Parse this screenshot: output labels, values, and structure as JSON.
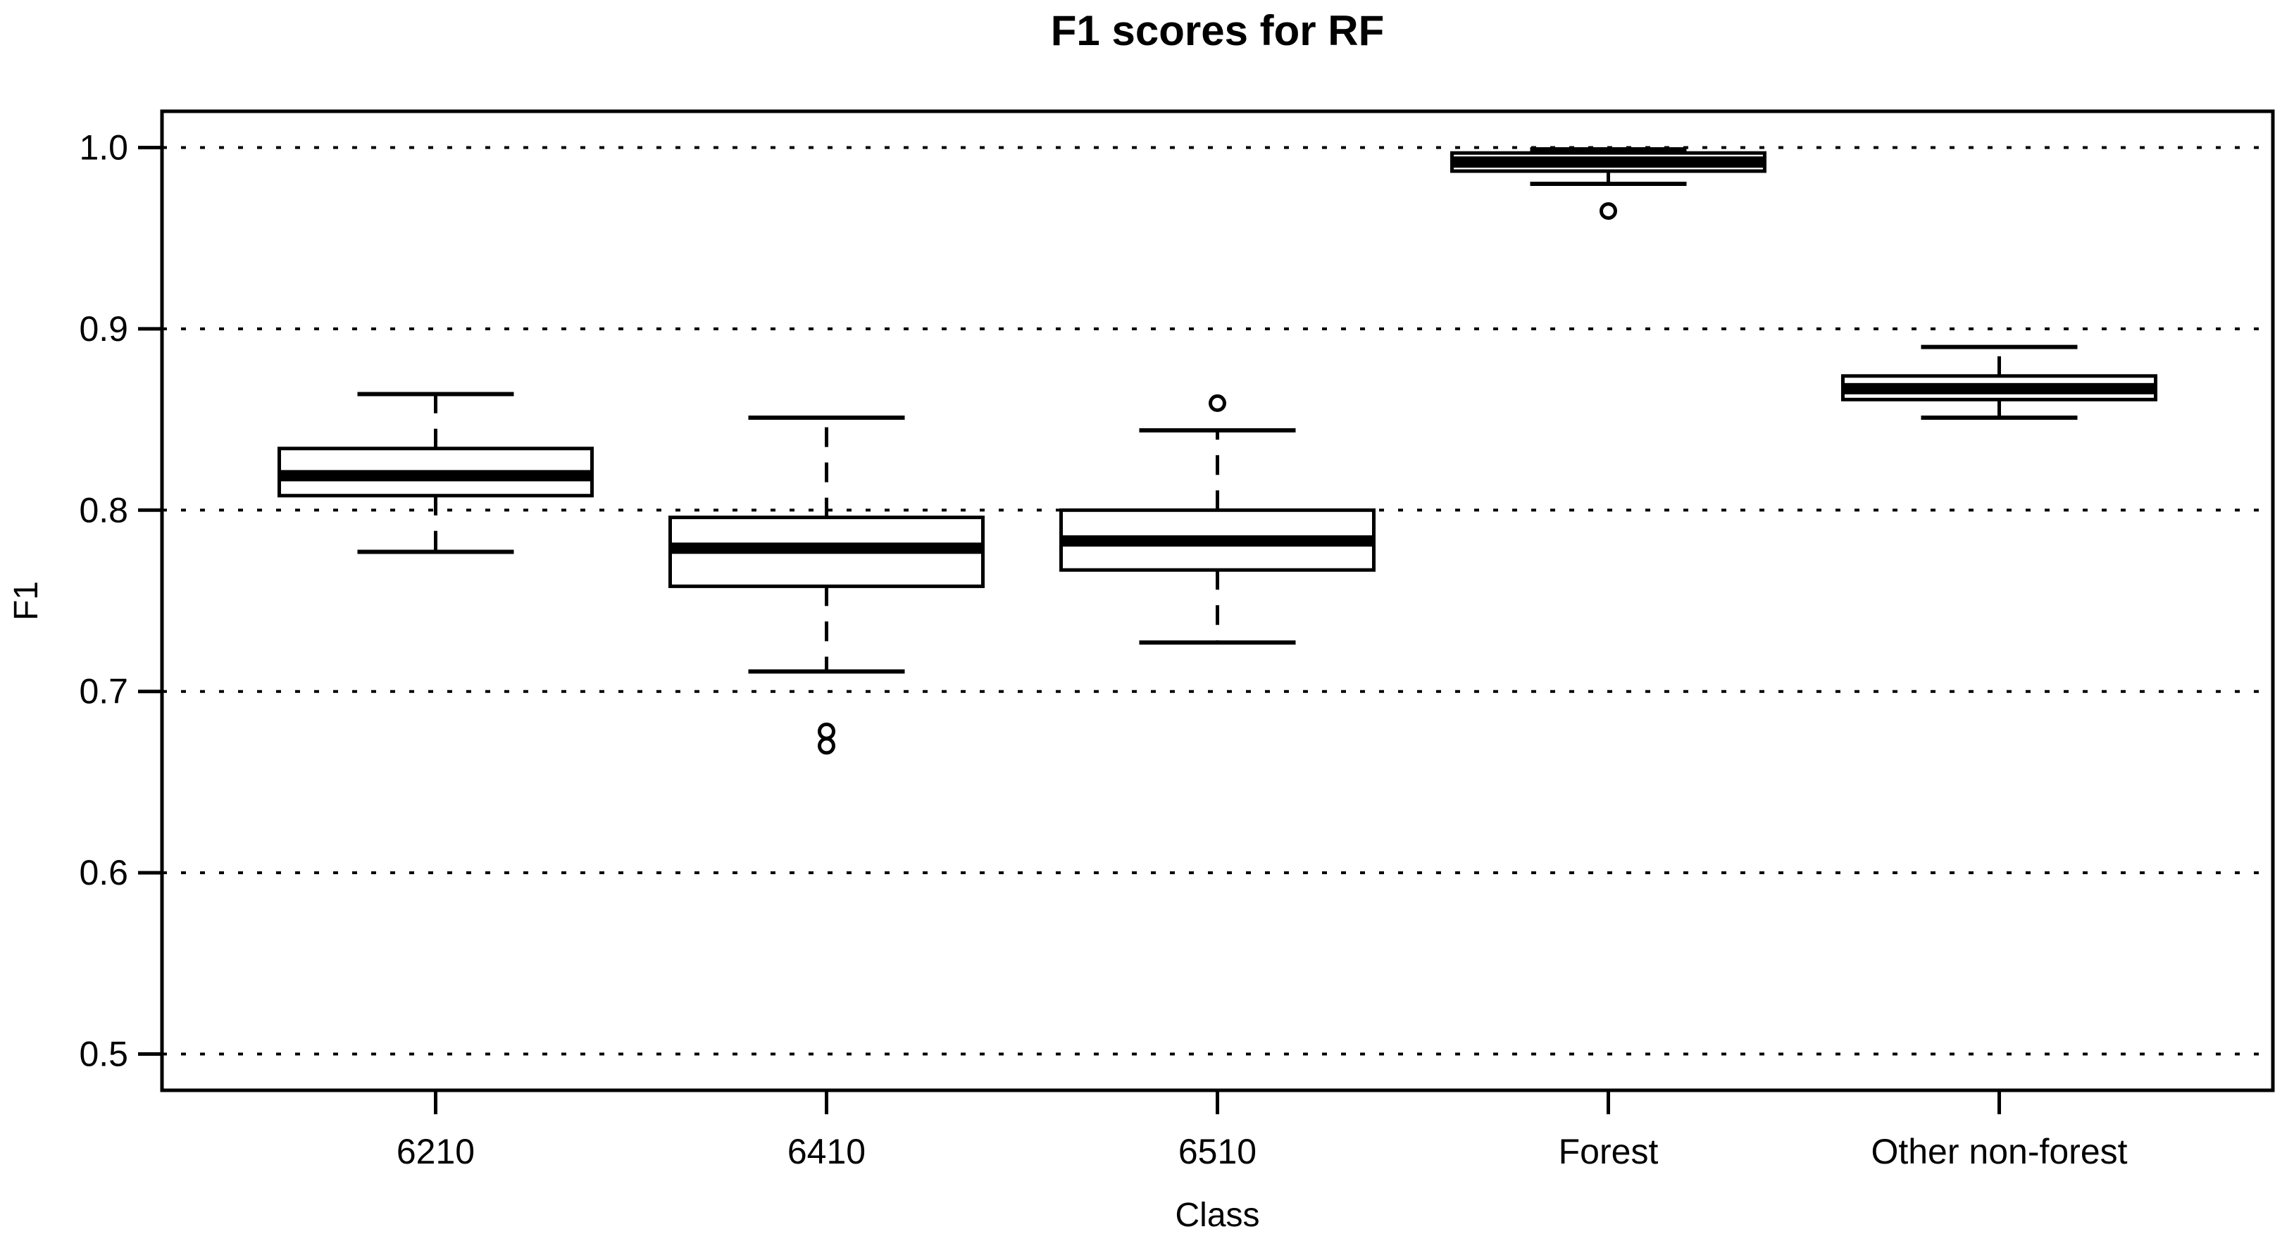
{
  "figure": {
    "title": "F1 scores for RF",
    "xlabel": "Class",
    "ylabel": "F1"
  },
  "chart_data": {
    "type": "boxplot",
    "title": "F1 scores for RF",
    "xlabel": "Class",
    "ylabel": "F1",
    "categories": [
      "6210",
      "6410",
      "6510",
      "Forest",
      "Other non-forest"
    ],
    "y_tick_labels": [
      "1.0",
      "0.9",
      "0.8",
      "0.7",
      "0.6",
      "0.5"
    ],
    "y_tick_values": [
      1.0,
      0.9,
      0.8,
      0.7,
      0.6,
      0.5
    ],
    "ylim": [
      0.48,
      1.02
    ],
    "xlim": [
      0.3,
      5.7
    ],
    "box_width": 0.8,
    "grid": "horizontal-dotted",
    "legend": "none",
    "series": [
      {
        "category": "6210",
        "whisker_low": 0.777,
        "q1": 0.808,
        "median": 0.819,
        "q3": 0.834,
        "whisker_high": 0.864,
        "outliers": []
      },
      {
        "category": "6410",
        "whisker_low": 0.711,
        "q1": 0.758,
        "median": 0.779,
        "q3": 0.796,
        "whisker_high": 0.851,
        "outliers": [
          0.678,
          0.67
        ]
      },
      {
        "category": "6510",
        "whisker_low": 0.727,
        "q1": 0.767,
        "median": 0.783,
        "q3": 0.8,
        "whisker_high": 0.844,
        "outliers": [
          0.859
        ]
      },
      {
        "category": "Forest",
        "whisker_low": 0.98,
        "q1": 0.987,
        "median": 0.992,
        "q3": 0.997,
        "whisker_high": 0.999,
        "outliers": [
          0.965
        ]
      },
      {
        "category": "Other non-forest",
        "whisker_low": 0.851,
        "q1": 0.861,
        "median": 0.867,
        "q3": 0.874,
        "whisker_high": 0.89,
        "outliers": []
      }
    ],
    "colors": {
      "line": "#000000",
      "box_fill": "#ffffff",
      "background": "#ffffff"
    }
  }
}
